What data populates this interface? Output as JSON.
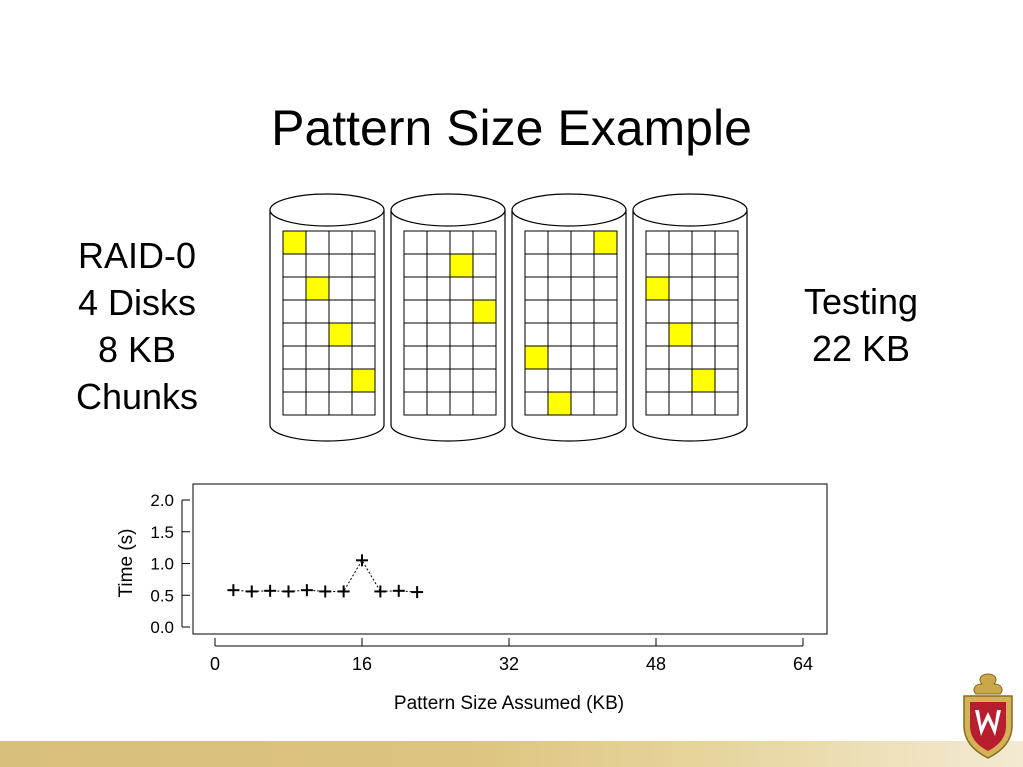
{
  "title": "Pattern Size Example",
  "left_label": [
    "RAID-0",
    "4 Disks",
    "8 KB",
    "Chunks"
  ],
  "right_label": [
    "Testing",
    "22 KB"
  ],
  "colors": {
    "highlight": "#ffff00",
    "footer": "#d9c07a",
    "crest": "#b71f2e"
  },
  "disks": [
    {
      "highlighted_cells": [
        [
          0,
          0
        ],
        [
          2,
          1
        ],
        [
          4,
          2
        ],
        [
          6,
          3
        ]
      ]
    },
    {
      "highlighted_cells": [
        [
          1,
          2
        ],
        [
          3,
          3
        ]
      ]
    },
    {
      "highlighted_cells": [
        [
          0,
          3
        ],
        [
          5,
          0
        ],
        [
          7,
          1
        ]
      ]
    },
    {
      "highlighted_cells": [
        [
          2,
          0
        ],
        [
          4,
          1
        ],
        [
          6,
          2
        ]
      ]
    }
  ],
  "disk_grid": {
    "rows": 8,
    "cols": 4
  },
  "logo_icon": "uw-crest-icon",
  "chart_data": {
    "type": "scatter",
    "xlabel": "Pattern Size Assumed (KB)",
    "ylabel": "Time (s)",
    "xlim": [
      0,
      66
    ],
    "ylim": [
      -0.1,
      2.15
    ],
    "xticks": [
      0,
      16,
      32,
      48,
      64
    ],
    "yticks": [
      0.0,
      0.5,
      1.0,
      1.5,
      2.0
    ],
    "ytick_labels": [
      "0.0",
      "0.5",
      "1.0",
      "1.5",
      "2.0"
    ],
    "xtick_labels": [
      "0",
      "16",
      "32",
      "48",
      "64"
    ],
    "grid": false,
    "marker": "+",
    "line": "dotted",
    "x": [
      2,
      4,
      6,
      8,
      10,
      12,
      14,
      16,
      18,
      20,
      22
    ],
    "y": [
      0.58,
      0.56,
      0.57,
      0.56,
      0.58,
      0.56,
      0.56,
      1.05,
      0.56,
      0.57,
      0.55
    ]
  }
}
